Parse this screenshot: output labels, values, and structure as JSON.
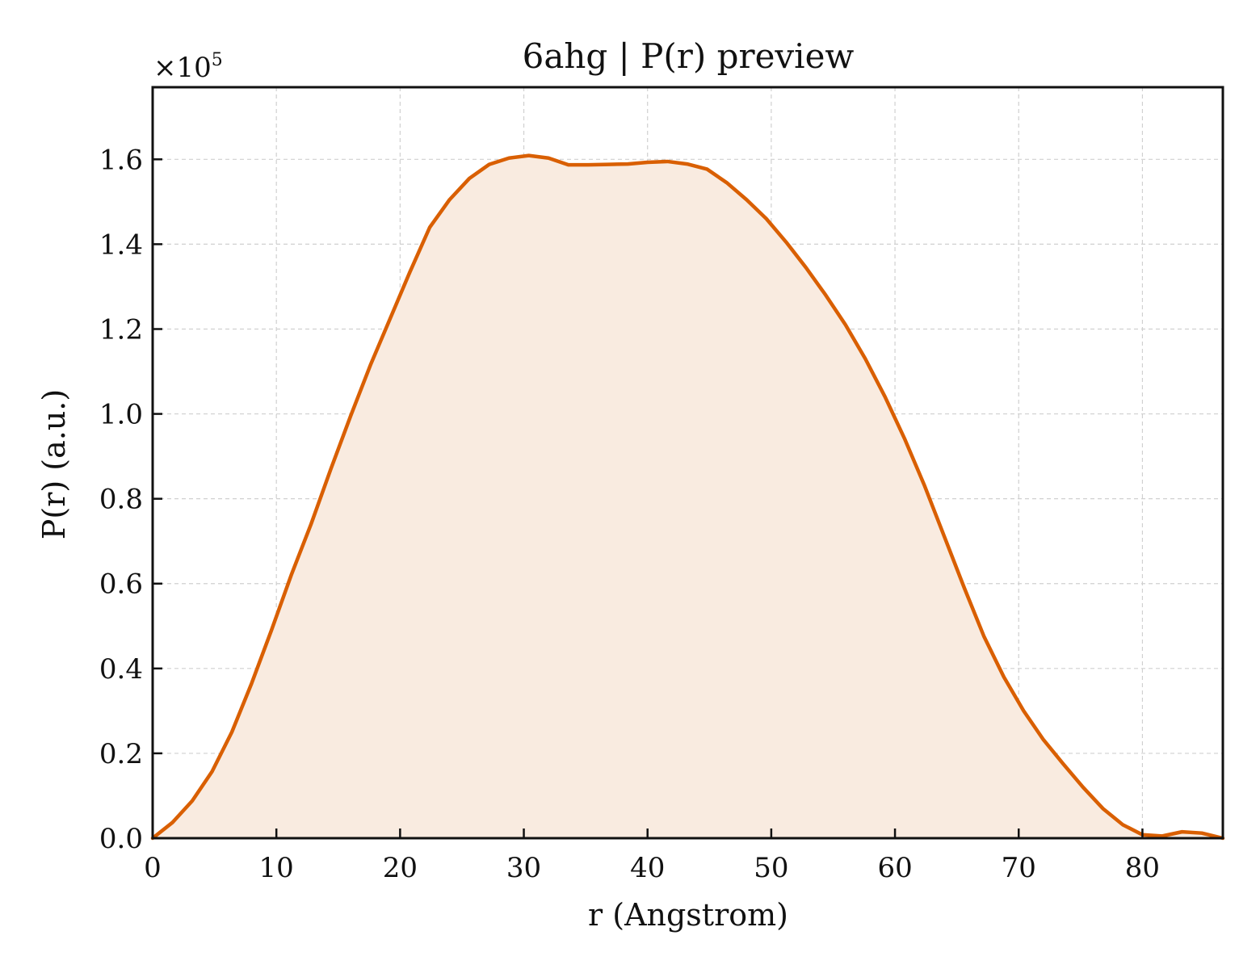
{
  "chart_data": {
    "type": "area",
    "title": "6ahg | P(r) preview",
    "xlabel": "r (Angstrom)",
    "ylabel": "P(r) (a.u.)",
    "y_offset_label": {
      "prefix": "×10",
      "exponent": "5"
    },
    "xlim": [
      0,
      86.5
    ],
    "ylim": [
      0,
      1.77
    ],
    "y_scale_factor": 100000,
    "x_ticks": [
      0,
      10,
      20,
      30,
      40,
      50,
      60,
      70,
      80
    ],
    "x_tick_labels": [
      "0",
      "10",
      "20",
      "30",
      "40",
      "50",
      "60",
      "70",
      "80"
    ],
    "y_ticks": [
      0,
      0.2,
      0.4,
      0.6,
      0.8,
      1.0,
      1.2,
      1.4,
      1.6
    ],
    "y_tick_labels": [
      "0.0",
      "0.2",
      "0.4",
      "0.6",
      "0.8",
      "1.0",
      "1.2",
      "1.4",
      "1.6"
    ],
    "grid": true,
    "legend": "none",
    "colors": {
      "line": "#d95f02",
      "fill": "#f9ebe0",
      "grid": "#d0d0d0",
      "axes": "#111111"
    },
    "series": [
      {
        "x": [
          0,
          1.6,
          3.2,
          4.8,
          6.4,
          8.0,
          9.6,
          11.2,
          12.8,
          14.4,
          16.0,
          17.6,
          19.2,
          20.8,
          22.4,
          24.0,
          25.6,
          27.2,
          28.8,
          30.4,
          32.0,
          33.6,
          35.2,
          36.8,
          38.4,
          40.0,
          41.6,
          43.2,
          44.8,
          46.4,
          48.0,
          49.6,
          51.2,
          52.8,
          54.4,
          56.0,
          57.6,
          59.2,
          60.8,
          62.4,
          64.0,
          65.6,
          67.2,
          68.8,
          70.4,
          72.0,
          73.6,
          75.2,
          76.8,
          78.4,
          80.0,
          81.6,
          83.2,
          84.8,
          86.5
        ],
        "y": [
          0.0,
          0.037,
          0.088,
          0.157,
          0.25,
          0.365,
          0.49,
          0.62,
          0.74,
          0.87,
          0.995,
          1.115,
          1.225,
          1.335,
          1.44,
          1.505,
          1.555,
          1.588,
          1.603,
          1.609,
          1.603,
          1.587,
          1.587,
          1.588,
          1.589,
          1.593,
          1.595,
          1.589,
          1.577,
          1.545,
          1.505,
          1.46,
          1.405,
          1.345,
          1.28,
          1.21,
          1.13,
          1.04,
          0.94,
          0.83,
          0.71,
          0.59,
          0.475,
          0.38,
          0.3,
          0.232,
          0.175,
          0.12,
          0.07,
          0.032,
          0.008,
          0.005,
          0.015,
          0.012,
          0.0
        ]
      }
    ]
  }
}
